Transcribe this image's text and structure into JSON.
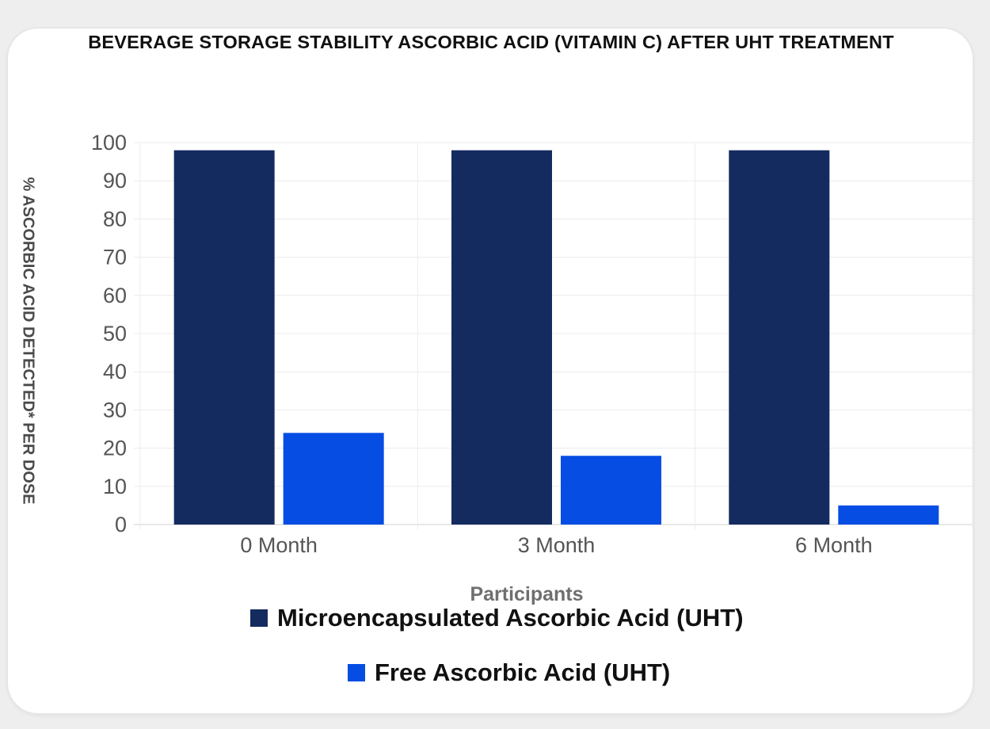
{
  "chart_data": {
    "type": "bar",
    "title": "BEVERAGE STORAGE STABILITY ASCORBIC ACID (VITAMIN C) AFTER UHT TREATMENT",
    "xlabel": "Participants",
    "ylabel": "% ASCORBIC ACID DETECTED* PER DOSE",
    "categories": [
      "0 Month",
      "3 Month",
      "6 Month"
    ],
    "ylim": [
      0,
      100
    ],
    "yticks": [
      0,
      10,
      20,
      30,
      40,
      50,
      60,
      70,
      80,
      90,
      100
    ],
    "grid": true,
    "legend_position": "bottom",
    "series": [
      {
        "name": "Microencapsulated Ascorbic Acid (UHT)",
        "color": "#142b5f",
        "values": [
          98,
          98,
          98
        ]
      },
      {
        "name": "Free Ascorbic Acid (UHT)",
        "color": "#064de4",
        "values": [
          24,
          18,
          5
        ]
      }
    ]
  }
}
